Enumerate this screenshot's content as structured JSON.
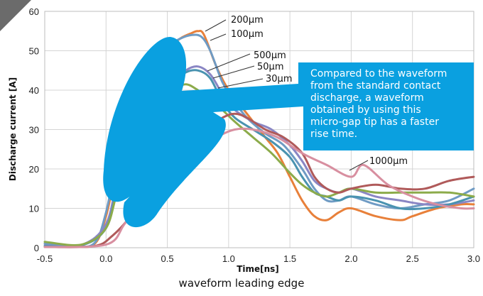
{
  "chart_data": {
    "type": "line",
    "title": "",
    "xlabel": "Time[ns]",
    "ylabel": "Discharge current [A]",
    "caption": "waveform leading edge",
    "xlim": [
      -0.5,
      3.0
    ],
    "ylim": [
      0,
      60
    ],
    "x_ticks": [
      "-0.5",
      "0.0",
      "0.5",
      "1.0",
      "1.5",
      "2.0",
      "2.5",
      "3.0"
    ],
    "y_ticks": [
      "0",
      "10",
      "20",
      "30",
      "40",
      "50",
      "60"
    ],
    "grid": true,
    "legend": "none",
    "series": [
      {
        "name": "200µm",
        "color": "#e8803a",
        "points": [
          [
            -0.5,
            1
          ],
          [
            -0.3,
            0.6
          ],
          [
            -0.1,
            0.8
          ],
          [
            0.0,
            8
          ],
          [
            0.1,
            22
          ],
          [
            0.25,
            38
          ],
          [
            0.4,
            47
          ],
          [
            0.5,
            50
          ],
          [
            0.6,
            53
          ],
          [
            0.7,
            54.5
          ],
          [
            0.75,
            55
          ],
          [
            0.8,
            54
          ],
          [
            0.9,
            46
          ],
          [
            1.0,
            40
          ],
          [
            1.1,
            36
          ],
          [
            1.2,
            32
          ],
          [
            1.3,
            28
          ],
          [
            1.4,
            24
          ],
          [
            1.5,
            18
          ],
          [
            1.6,
            12
          ],
          [
            1.7,
            8
          ],
          [
            1.8,
            7
          ],
          [
            1.9,
            9
          ],
          [
            2.0,
            10
          ],
          [
            2.2,
            8
          ],
          [
            2.4,
            7
          ],
          [
            2.5,
            8
          ],
          [
            2.7,
            10
          ],
          [
            2.9,
            11
          ],
          [
            3.0,
            11
          ]
        ]
      },
      {
        "name": "100µm",
        "color": "#6f9bc4",
        "points": [
          [
            -0.5,
            1
          ],
          [
            -0.3,
            0.5
          ],
          [
            -0.1,
            1
          ],
          [
            0.0,
            9
          ],
          [
            0.1,
            24
          ],
          [
            0.25,
            40
          ],
          [
            0.4,
            48
          ],
          [
            0.5,
            51
          ],
          [
            0.6,
            53
          ],
          [
            0.7,
            54
          ],
          [
            0.78,
            53.5
          ],
          [
            0.85,
            50
          ],
          [
            0.95,
            42
          ],
          [
            1.05,
            37
          ],
          [
            1.15,
            33
          ],
          [
            1.3,
            29
          ],
          [
            1.45,
            26
          ],
          [
            1.6,
            20
          ],
          [
            1.7,
            15
          ],
          [
            1.8,
            12
          ],
          [
            1.9,
            12
          ],
          [
            2.0,
            13
          ],
          [
            2.2,
            11
          ],
          [
            2.4,
            10
          ],
          [
            2.6,
            11
          ],
          [
            2.8,
            12
          ],
          [
            3.0,
            15
          ]
        ]
      },
      {
        "name": "500µm",
        "color": "#8a86c4",
        "points": [
          [
            -0.5,
            0.5
          ],
          [
            -0.2,
            0.7
          ],
          [
            0.0,
            6
          ],
          [
            0.1,
            18
          ],
          [
            0.25,
            30
          ],
          [
            0.4,
            38
          ],
          [
            0.55,
            42
          ],
          [
            0.65,
            45
          ],
          [
            0.75,
            46
          ],
          [
            0.85,
            44
          ],
          [
            0.95,
            39
          ],
          [
            1.05,
            35
          ],
          [
            1.2,
            32
          ],
          [
            1.35,
            30
          ],
          [
            1.5,
            26
          ],
          [
            1.6,
            22
          ],
          [
            1.7,
            17
          ],
          [
            1.8,
            15
          ],
          [
            1.9,
            14
          ],
          [
            2.0,
            15
          ],
          [
            2.2,
            13
          ],
          [
            2.4,
            12
          ],
          [
            2.6,
            11
          ],
          [
            2.8,
            11
          ],
          [
            3.0,
            12
          ]
        ]
      },
      {
        "name": "50µm",
        "color": "#4a93b0",
        "points": [
          [
            -0.5,
            0.4
          ],
          [
            -0.2,
            0.6
          ],
          [
            0.0,
            5
          ],
          [
            0.1,
            16
          ],
          [
            0.25,
            28
          ],
          [
            0.4,
            37
          ],
          [
            0.55,
            42
          ],
          [
            0.65,
            44.5
          ],
          [
            0.75,
            45
          ],
          [
            0.85,
            43
          ],
          [
            0.95,
            37
          ],
          [
            1.05,
            33
          ],
          [
            1.2,
            30
          ],
          [
            1.35,
            27
          ],
          [
            1.5,
            23
          ],
          [
            1.6,
            18
          ],
          [
            1.7,
            14
          ],
          [
            1.8,
            13
          ],
          [
            1.9,
            12
          ],
          [
            2.0,
            13
          ],
          [
            2.2,
            12
          ],
          [
            2.4,
            10
          ],
          [
            2.6,
            10
          ],
          [
            2.8,
            11
          ],
          [
            3.0,
            13
          ]
        ]
      },
      {
        "name": "30µm",
        "color": "#8cab4a",
        "points": [
          [
            -0.5,
            1.5
          ],
          [
            -0.2,
            0.8
          ],
          [
            0.0,
            5
          ],
          [
            0.1,
            15
          ],
          [
            0.25,
            26
          ],
          [
            0.4,
            36
          ],
          [
            0.55,
            40
          ],
          [
            0.65,
            41.5
          ],
          [
            0.75,
            40
          ],
          [
            0.85,
            38
          ],
          [
            0.95,
            35
          ],
          [
            1.05,
            32
          ],
          [
            1.2,
            28
          ],
          [
            1.35,
            24
          ],
          [
            1.5,
            19
          ],
          [
            1.6,
            16
          ],
          [
            1.7,
            14
          ],
          [
            1.8,
            13
          ],
          [
            1.9,
            14
          ],
          [
            2.0,
            15
          ],
          [
            2.2,
            14
          ],
          [
            2.4,
            14
          ],
          [
            2.6,
            14
          ],
          [
            2.8,
            14
          ],
          [
            3.0,
            13
          ]
        ]
      },
      {
        "name": "",
        "color": "#b05a5a",
        "points": [
          [
            -0.5,
            0.2
          ],
          [
            -0.1,
            0.4
          ],
          [
            0.05,
            3
          ],
          [
            0.2,
            8
          ],
          [
            0.35,
            15
          ],
          [
            0.5,
            22
          ],
          [
            0.65,
            28
          ],
          [
            0.8,
            30
          ],
          [
            0.95,
            33
          ],
          [
            1.05,
            34
          ],
          [
            1.15,
            33
          ],
          [
            1.3,
            30
          ],
          [
            1.45,
            28
          ],
          [
            1.6,
            24
          ],
          [
            1.7,
            18
          ],
          [
            1.8,
            15
          ],
          [
            1.9,
            14
          ],
          [
            2.0,
            15
          ],
          [
            2.2,
            16
          ],
          [
            2.4,
            15
          ],
          [
            2.6,
            15
          ],
          [
            2.8,
            17
          ],
          [
            3.0,
            18
          ]
        ]
      },
      {
        "name": "1000µm",
        "color": "#d88fa0",
        "points": [
          [
            -0.5,
            0.2
          ],
          [
            0.0,
            0.8
          ],
          [
            0.15,
            6
          ],
          [
            0.3,
            13
          ],
          [
            0.45,
            18
          ],
          [
            0.6,
            22
          ],
          [
            0.75,
            25
          ],
          [
            0.9,
            28
          ],
          [
            1.05,
            30
          ],
          [
            1.2,
            30
          ],
          [
            1.4,
            28
          ],
          [
            1.6,
            24
          ],
          [
            1.8,
            21
          ],
          [
            2.0,
            18
          ],
          [
            2.1,
            21
          ],
          [
            2.3,
            16
          ],
          [
            2.5,
            13
          ],
          [
            2.7,
            11
          ],
          [
            2.9,
            10
          ],
          [
            3.0,
            10
          ]
        ]
      }
    ],
    "labels": [
      {
        "key": "l200",
        "text": "200µm"
      },
      {
        "key": "l100",
        "text": "100µm"
      },
      {
        "key": "l500",
        "text": "500µm"
      },
      {
        "key": "l50",
        "text": "50µm"
      },
      {
        "key": "l30",
        "text": "30µm"
      },
      {
        "key": "l1000",
        "text": "1000µm"
      }
    ],
    "annotation": "Compared to the waveform from the standard contact discharge, a waveform obtained by using this micro-gap tip has a faster rise time.",
    "annotation_color": "#0aa0e0"
  }
}
